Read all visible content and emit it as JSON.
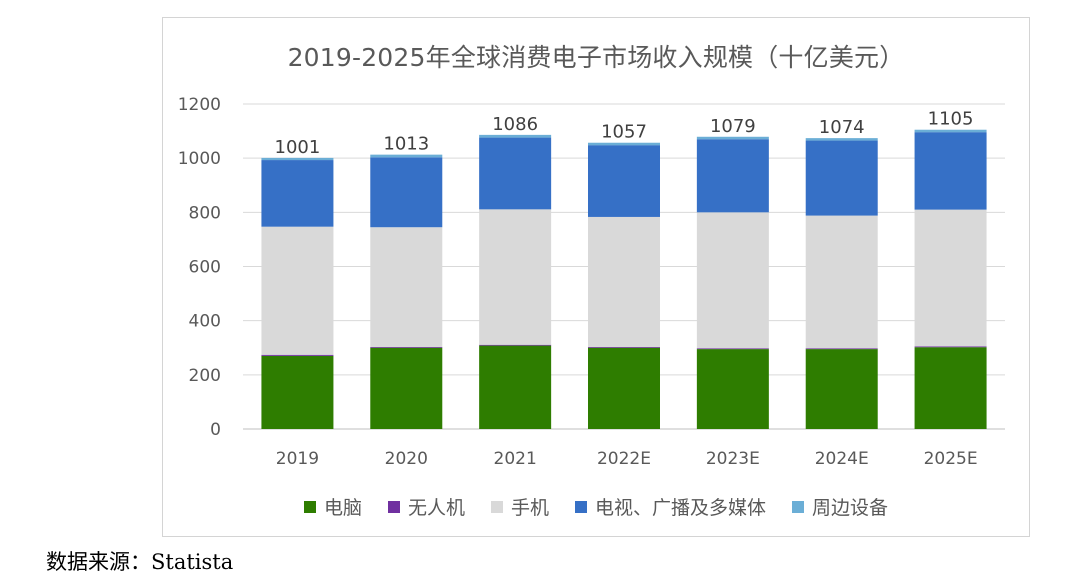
{
  "chart_data": {
    "type": "bar",
    "stacked": true,
    "title": "2019-2025年全球消费电子市场收入规模（十亿美元）",
    "categories": [
      "2019",
      "2020",
      "2021",
      "2022E",
      "2023E",
      "2024E",
      "2025E"
    ],
    "series": [
      {
        "name": "电脑",
        "color": "#2E7D00",
        "values": [
          270,
          300,
          308,
          300,
          295,
          295,
          302
        ]
      },
      {
        "name": "无人机",
        "color": "#7030A0",
        "values": [
          4,
          3,
          3,
          3,
          3,
          3,
          3
        ]
      },
      {
        "name": "手机",
        "color": "#D9D9D9",
        "values": [
          473,
          442,
          500,
          480,
          502,
          490,
          505
        ]
      },
      {
        "name": "电视、广播及多媒体",
        "color": "#3670C6",
        "values": [
          246,
          258,
          265,
          265,
          270,
          277,
          286
        ]
      },
      {
        "name": "周边设备",
        "color": "#6BAED6",
        "values": [
          8,
          10,
          10,
          9,
          9,
          9,
          9
        ]
      }
    ],
    "totals": [
      1001,
      1013,
      1086,
      1057,
      1079,
      1074,
      1105
    ],
    "ylim": [
      0,
      1200
    ],
    "yticks": [
      0,
      200,
      400,
      600,
      800,
      1000,
      1200
    ],
    "xlabel": "",
    "ylabel": "",
    "grid": true,
    "legend_position": "bottom"
  },
  "source": "数据来源：Statista"
}
